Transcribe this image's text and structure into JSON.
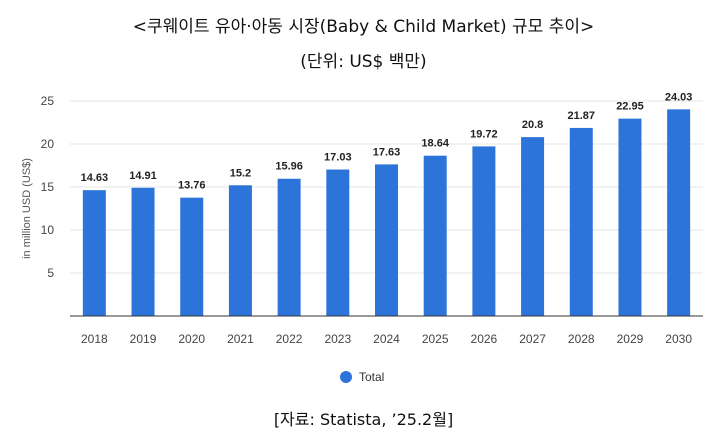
{
  "header": {
    "title": "<쿠웨이트 유아·아동 시장(Baby & Child Market) 규모 추이>",
    "unit": "(단위: US$ 백만)"
  },
  "footer": {
    "source": "[자료: Statista, ’25.2월]"
  },
  "chart_data": {
    "type": "bar",
    "categories": [
      "2018",
      "2019",
      "2020",
      "2021",
      "2022",
      "2023",
      "2024",
      "2025",
      "2026",
      "2027",
      "2028",
      "2029",
      "2030"
    ],
    "series": [
      {
        "name": "Total",
        "values": [
          14.63,
          14.91,
          13.76,
          15.2,
          15.96,
          17.03,
          17.63,
          18.64,
          19.72,
          20.8,
          21.87,
          22.95,
          24.03
        ],
        "color": "#2d74da"
      }
    ],
    "ylabel": "in million USD (US$)",
    "xlabel": "",
    "ylim": [
      0,
      25
    ],
    "yticks": [
      5,
      10,
      15,
      20,
      25
    ],
    "grid": true,
    "legend_position": "bottom"
  }
}
